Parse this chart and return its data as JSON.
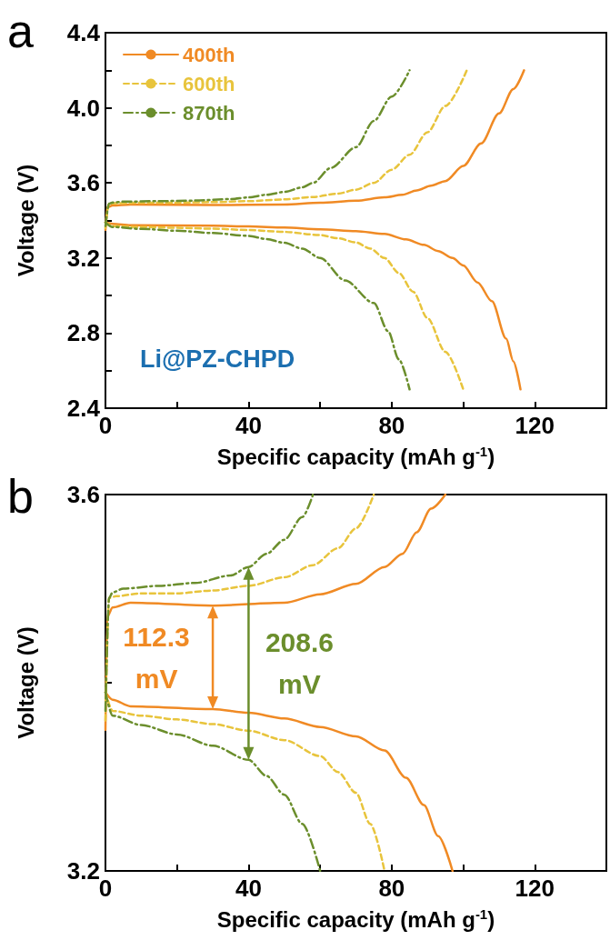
{
  "chart_data": [
    {
      "type": "line",
      "xlabel": "Specific capacity (mAh g$^{-1}$)",
      "ylabel": "Voltage (V)",
      "annotations": [
        "a",
        "Li@PZ-CHPD"
      ],
      "xlim": [
        0,
        140
      ],
      "xticks": [
        0,
        {
          "value": 20,
          "label": null
        },
        40,
        {
          "value": 60,
          "label": null
        },
        80,
        {
          "value": 100,
          "label": null
        },
        120
      ],
      "ylim": [
        2.4,
        4.4
      ],
      "yticks": [
        2.4,
        {
          "value": 2.6,
          "label": null
        },
        2.8,
        {
          "value": 3.0,
          "label": null
        },
        3.2,
        {
          "value": 3.4,
          "label": null
        },
        3.6,
        {
          "value": 3.8,
          "label": null
        },
        {
          "value": 4.0,
          "label": "4.0"
        },
        {
          "value": 4.2,
          "label": null
        },
        4.4
      ],
      "grid": false,
      "legend": "top left",
      "marker": "none",
      "series": [
        {
          "name": "400th",
          "color": "#f08a24",
          "line_style": "solid",
          "x": [
            0,
            0.5,
            2,
            7,
            30,
            50,
            60,
            70,
            78,
            83,
            87,
            91,
            95,
            100,
            105,
            110,
            114,
            117,
            null,
            0,
            2,
            7,
            30,
            40,
            50,
            60,
            70,
            78,
            84,
            89,
            93,
            97,
            100,
            104,
            108,
            112,
            114,
            116
          ],
          "values": [
            3.35,
            3.47,
            3.48,
            3.485,
            3.482,
            3.485,
            3.494,
            3.505,
            3.523,
            3.537,
            3.56,
            3.585,
            3.61,
            3.69,
            3.81,
            3.97,
            4.1,
            4.2,
            null,
            3.39,
            3.382,
            3.375,
            3.372,
            3.368,
            3.362,
            3.353,
            3.343,
            3.328,
            3.299,
            3.27,
            3.237,
            3.2,
            3.16,
            3.07,
            2.97,
            2.77,
            2.65,
            2.5
          ]
        },
        {
          "name": "600th",
          "color": "#e8c43c",
          "line_style": "dashed",
          "x": [
            0,
            1,
            3,
            10,
            20,
            30,
            40,
            50,
            58,
            65,
            70,
            75,
            80,
            85,
            90,
            95,
            101,
            null,
            0,
            2,
            10,
            20,
            30,
            40,
            50,
            60,
            65,
            70,
            74,
            78,
            82,
            86,
            90,
            95,
            100
          ],
          "values": [
            3.36,
            3.49,
            3.492,
            3.495,
            3.495,
            3.498,
            3.503,
            3.512,
            3.525,
            3.543,
            3.564,
            3.6,
            3.67,
            3.75,
            3.87,
            4.01,
            4.2,
            null,
            3.39,
            3.37,
            3.365,
            3.361,
            3.356,
            3.349,
            3.339,
            3.322,
            3.305,
            3.283,
            3.25,
            3.2,
            3.12,
            3.02,
            2.88,
            2.7,
            2.5
          ]
        },
        {
          "name": "870th",
          "color": "#6b8e2c",
          "line_style": "dashdot",
          "x": [
            0,
            1,
            2,
            5,
            15,
            25,
            35,
            40,
            45,
            50,
            55,
            58,
            63,
            70,
            75,
            80,
            85,
            null,
            0,
            2,
            10,
            20,
            30,
            40,
            45,
            50,
            55,
            60,
            67,
            75,
            79,
            82,
            85
          ],
          "values": [
            3.37,
            3.49,
            3.496,
            3.5,
            3.503,
            3.506,
            3.514,
            3.523,
            3.537,
            3.552,
            3.576,
            3.6,
            3.68,
            3.79,
            3.93,
            4.06,
            4.2,
            null,
            3.39,
            3.365,
            3.355,
            3.345,
            3.333,
            3.318,
            3.301,
            3.281,
            3.25,
            3.2,
            3.08,
            2.96,
            2.81,
            2.66,
            2.5
          ]
        }
      ]
    },
    {
      "type": "line",
      "xlabel": "Specific capacity (mAh g$^{-1}$)",
      "ylabel": "Voltage (V)",
      "annotations": [
        "b",
        {
          "text": "112.3\nmV",
          "x": 30,
          "y": 3.482
        },
        {
          "text": "208.6\nmV",
          "x": 40,
          "y": 3.523
        }
      ],
      "xlim": [
        0,
        140
      ],
      "xticks": [
        0,
        {
          "value": 20,
          "label": null
        },
        40,
        {
          "value": 60,
          "label": null
        },
        80,
        {
          "value": 100,
          "label": null
        },
        120
      ],
      "ylim": [
        3.2,
        3.6
      ],
      "yticks": [
        3.2,
        {
          "value": 3.4,
          "label": null
        },
        3.6
      ],
      "grid": false,
      "legend": false,
      "marker": "none",
      "series": [
        {
          "color": "#f08a24",
          "line_style": "solid",
          "x": [
            0,
            0.5,
            2,
            7,
            30,
            50,
            60,
            70,
            78,
            83,
            87,
            91,
            95,
            null,
            0,
            2,
            7,
            30,
            40,
            50,
            60,
            70,
            78,
            84,
            89,
            93,
            97
          ],
          "values": [
            3.35,
            3.47,
            3.48,
            3.485,
            3.482,
            3.485,
            3.494,
            3.505,
            3.523,
            3.537,
            3.56,
            3.585,
            3.6,
            null,
            3.39,
            3.382,
            3.375,
            3.372,
            3.368,
            3.362,
            3.353,
            3.343,
            3.328,
            3.299,
            3.27,
            3.237,
            3.2
          ]
        },
        {
          "color": "#e8c43c",
          "line_style": "dashed",
          "x": [
            0,
            1,
            3,
            10,
            20,
            30,
            40,
            50,
            58,
            65,
            70,
            75,
            null,
            0,
            2,
            10,
            20,
            30,
            40,
            50,
            60,
            65,
            70,
            74,
            78
          ],
          "values": [
            3.36,
            3.49,
            3.492,
            3.495,
            3.495,
            3.498,
            3.503,
            3.512,
            3.525,
            3.543,
            3.564,
            3.6,
            null,
            3.39,
            3.37,
            3.365,
            3.361,
            3.356,
            3.349,
            3.339,
            3.322,
            3.305,
            3.283,
            3.25,
            3.2
          ]
        },
        {
          "color": "#6b8e2c",
          "line_style": "dashdot",
          "x": [
            0,
            1,
            2,
            5,
            15,
            25,
            35,
            40,
            45,
            50,
            55,
            58,
            null,
            0,
            2,
            10,
            20,
            30,
            40,
            45,
            50,
            55,
            60
          ],
          "values": [
            3.37,
            3.49,
            3.496,
            3.5,
            3.503,
            3.506,
            3.514,
            3.523,
            3.537,
            3.552,
            3.576,
            3.6,
            null,
            3.39,
            3.365,
            3.355,
            3.345,
            3.333,
            3.318,
            3.301,
            3.281,
            3.25,
            3.2
          ]
        }
      ]
    }
  ]
}
